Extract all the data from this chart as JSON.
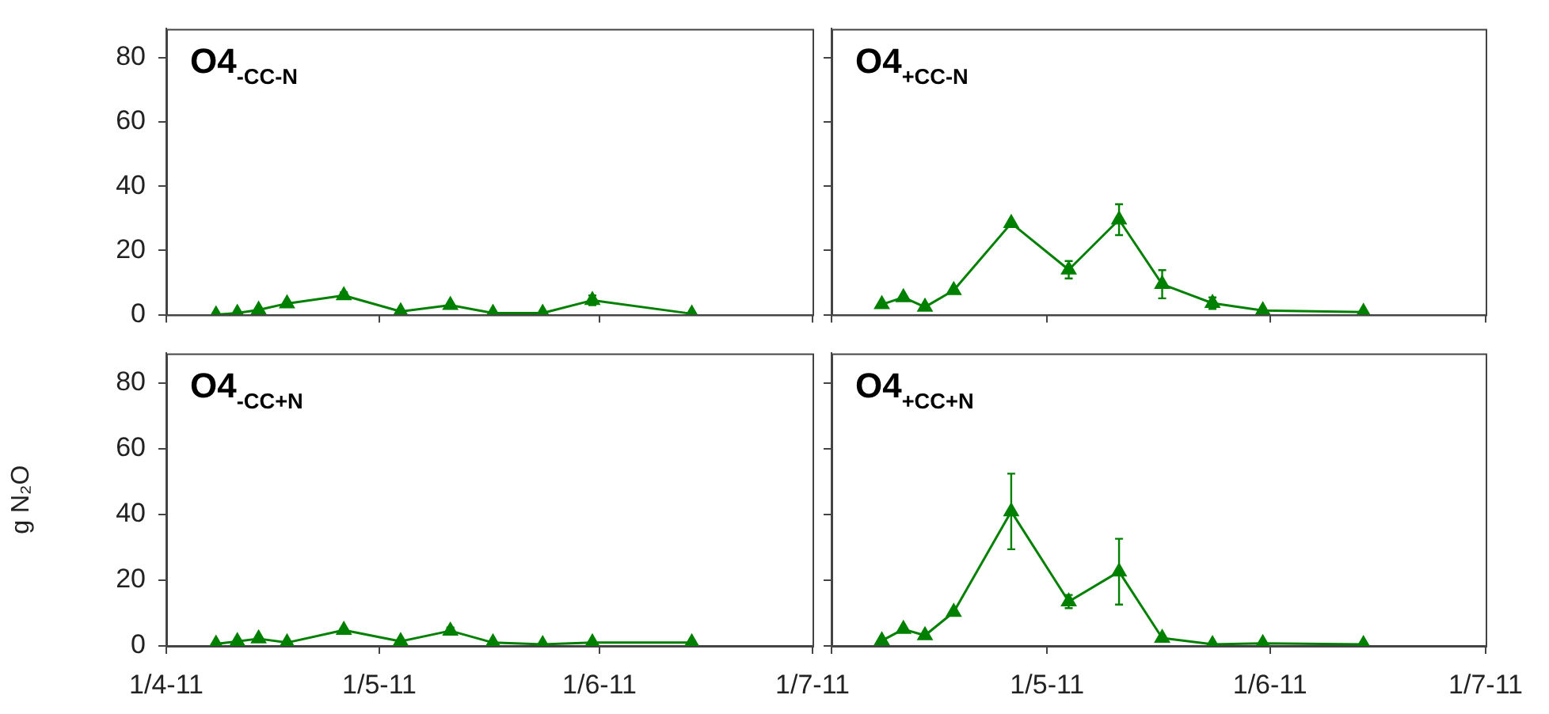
{
  "chart_data": [
    {
      "type": "line",
      "title": "O4$_{-CC-N}$",
      "x": [
        "2011-04-08",
        "2011-04-11",
        "2011-04-14",
        "2011-04-18",
        "2011-04-26",
        "2011-05-04",
        "2011-05-11",
        "2011-05-17",
        "2011-05-24",
        "2011-05-31",
        "2011-06-14"
      ],
      "series": [
        {
          "color": "#008000",
          "values": [
            0,
            0.5,
            1.5,
            3.5,
            6,
            1,
            3,
            0.5,
            0.5,
            4.5,
            0.3
          ],
          "errors": [
            null,
            null,
            null,
            null,
            1,
            null,
            null,
            null,
            null,
            1.5,
            null
          ]
        }
      ],
      "xlim": [
        "2011-04-01",
        "2011-07-01"
      ],
      "ylim": [
        0,
        89
      ],
      "yticks": [
        0,
        20,
        40,
        60,
        80
      ],
      "xticks": [
        {
          "value": "2011-04-01",
          "label": null
        },
        {
          "value": "2011-05-01",
          "label": null
        },
        {
          "value": "2011-06-01",
          "label": null
        },
        {
          "value": "2011-07-01",
          "label": null
        }
      ],
      "tick_labels": "y",
      "marker": "triangle",
      "line_style": "solid",
      "legend": false,
      "grid": false
    },
    {
      "type": "line",
      "title": "O4$_{+CC-N}$",
      "x": [
        "2011-04-08",
        "2011-04-11",
        "2011-04-14",
        "2011-04-18",
        "2011-04-26",
        "2011-05-04",
        "2011-05-11",
        "2011-05-17",
        "2011-05-24",
        "2011-05-31",
        "2011-06-14"
      ],
      "series": [
        {
          "color": "#008000",
          "values": [
            3.2,
            5.4,
            2.4,
            7.6,
            28.5,
            14,
            29.6,
            9.5,
            3.6,
            1.3,
            0.8
          ],
          "errors": [
            null,
            null,
            null,
            null,
            null,
            2.7,
            4.8,
            4.4,
            1.8,
            null,
            null
          ]
        }
      ],
      "xlim": [
        "2011-04-01",
        "2011-07-01"
      ],
      "ylim": [
        0,
        89
      ],
      "yticks": [
        {
          "value": 0,
          "label": null
        },
        {
          "value": 20,
          "label": null
        },
        {
          "value": 40,
          "label": null
        },
        {
          "value": 60,
          "label": null
        },
        {
          "value": 80,
          "label": null
        }
      ],
      "xticks": [
        {
          "value": "2011-04-01",
          "label": null
        },
        {
          "value": "2011-05-01",
          "label": null
        },
        {
          "value": "2011-06-01",
          "label": null
        },
        {
          "value": "2011-07-01",
          "label": null
        }
      ],
      "tick_labels": false,
      "marker": "triangle",
      "line_style": "solid",
      "legend": false,
      "grid": false
    },
    {
      "type": "line",
      "title": "O4$_{-CC+N}$",
      "ylabel": "g N₂O",
      "x": [
        "2011-04-08",
        "2011-04-11",
        "2011-04-14",
        "2011-04-18",
        "2011-04-26",
        "2011-05-04",
        "2011-05-11",
        "2011-05-17",
        "2011-05-24",
        "2011-05-31",
        "2011-06-14"
      ],
      "series": [
        {
          "color": "#008000",
          "values": [
            0.6,
            1.4,
            2.2,
            1,
            4.8,
            1.4,
            4.6,
            1,
            0.5,
            1,
            1
          ],
          "errors": [
            null,
            null,
            null,
            null,
            null,
            null,
            1,
            null,
            null,
            null,
            null
          ]
        }
      ],
      "xlim": [
        "2011-04-01",
        "2011-07-01"
      ],
      "ylim": [
        0,
        89
      ],
      "yticks": [
        0,
        20,
        40,
        60,
        80
      ],
      "xticks": [
        {
          "value": "2011-04-01",
          "label": "1/4-11"
        },
        {
          "value": "2011-05-01",
          "label": "1/5-11"
        },
        {
          "value": "2011-06-01",
          "label": "1/6-11"
        },
        {
          "value": "2011-07-01",
          "label": "1/7-11"
        }
      ],
      "marker": "triangle",
      "line_style": "solid",
      "legend": false,
      "grid": false
    },
    {
      "type": "line",
      "title": "O4$_{+CC+N}$",
      "x": [
        "2011-04-08",
        "2011-04-11",
        "2011-04-14",
        "2011-04-18",
        "2011-04-26",
        "2011-05-04",
        "2011-05-11",
        "2011-05-17",
        "2011-05-24",
        "2011-05-31",
        "2011-06-14"
      ],
      "series": [
        {
          "color": "#008000",
          "values": [
            1.6,
            5.1,
            3.2,
            10.3,
            40.9,
            13.5,
            22.6,
            2.4,
            0.5,
            0.8,
            0.5
          ],
          "errors": [
            null,
            null,
            null,
            null,
            11.5,
            2,
            10,
            null,
            null,
            null,
            null
          ]
        }
      ],
      "xlim": [
        "2011-04-01",
        "2011-07-01"
      ],
      "ylim": [
        0,
        89
      ],
      "yticks": [
        {
          "value": 0,
          "label": null
        },
        {
          "value": 20,
          "label": null
        },
        {
          "value": 40,
          "label": null
        },
        {
          "value": 60,
          "label": null
        },
        {
          "value": 80,
          "label": null
        }
      ],
      "xticks": [
        {
          "value": "2011-04-01",
          "label": null
        },
        {
          "value": "2011-05-01",
          "label": "1/5-11"
        },
        {
          "value": "2011-06-01",
          "label": "1/6-11"
        },
        {
          "value": "2011-07-01",
          "label": "1/7-11"
        }
      ],
      "tick_labels": "x",
      "marker": "triangle",
      "line_style": "solid",
      "legend": false,
      "grid": false
    }
  ]
}
